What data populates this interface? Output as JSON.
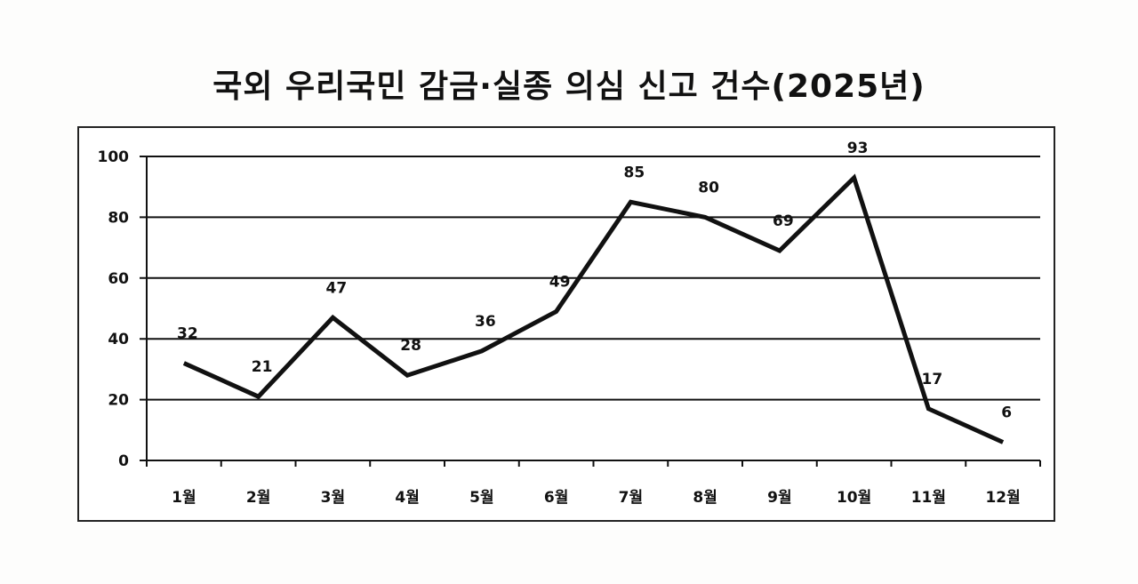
{
  "title": "국외 우리국민 감금·실종 의심 신고 건수(2025년)",
  "chart_data": {
    "type": "line",
    "title": "국외 우리국민 감금·실종 의심 신고 건수(2025년)",
    "xlabel": "",
    "ylabel": "",
    "categories": [
      "1월",
      "2월",
      "3월",
      "4월",
      "5월",
      "6월",
      "7월",
      "8월",
      "9월",
      "10월",
      "11월",
      "12월"
    ],
    "series": [
      {
        "name": "신고 건수",
        "values": [
          32,
          21,
          47,
          28,
          36,
          49,
          85,
          80,
          69,
          93,
          17,
          6
        ]
      }
    ],
    "ylim": [
      0,
      100
    ],
    "yticks": [
      0,
      20,
      40,
      60,
      80,
      100
    ],
    "grid": true,
    "legend": "none",
    "data_labels": true,
    "line_color": "#111111"
  }
}
